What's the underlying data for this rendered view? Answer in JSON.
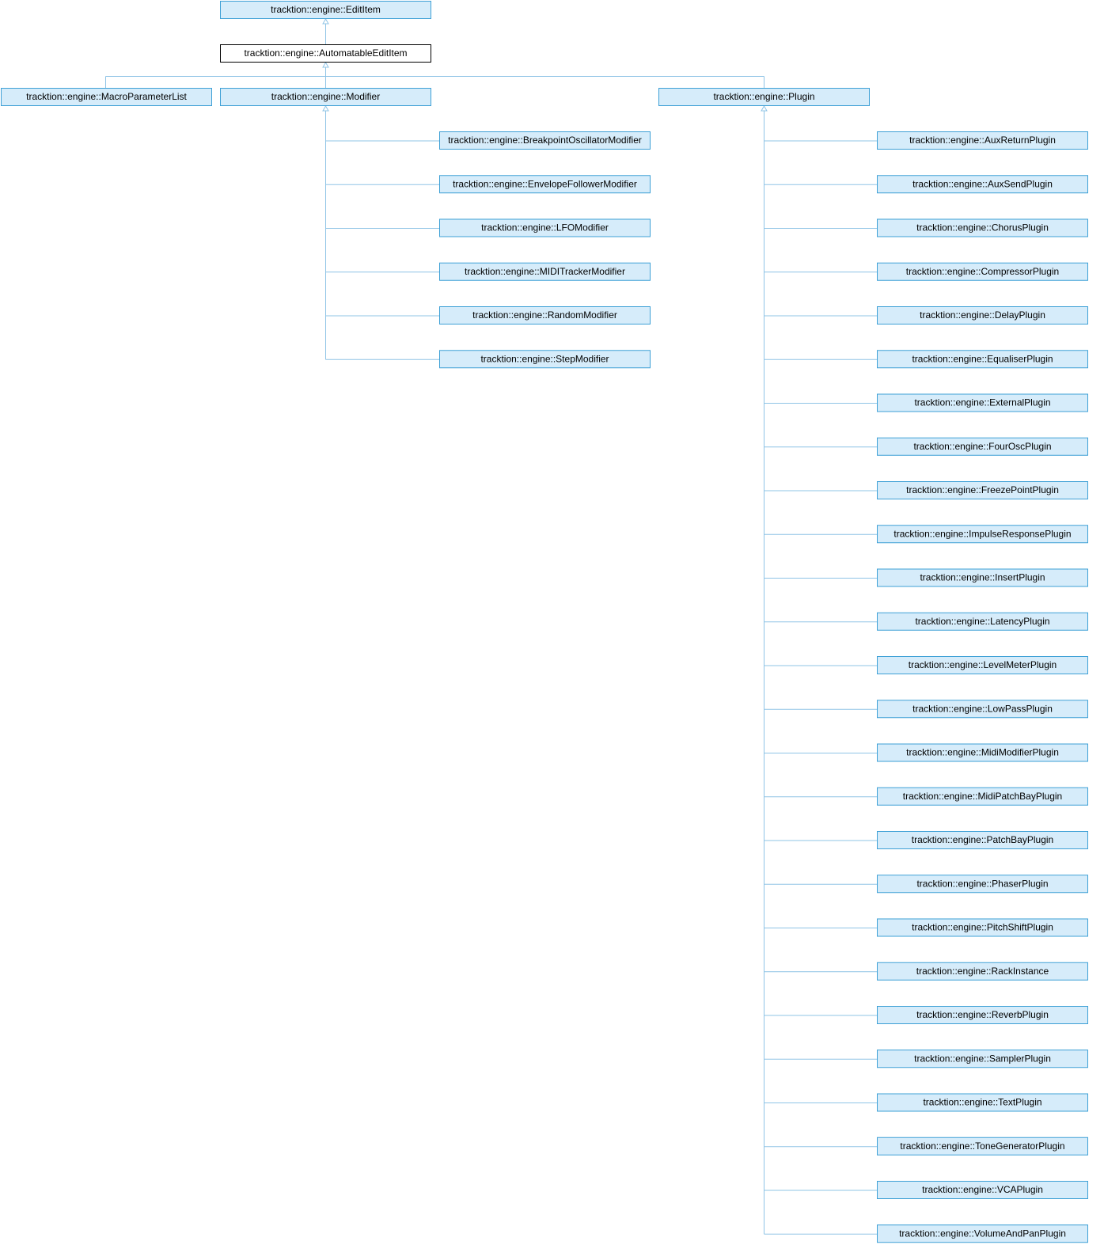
{
  "colors": {
    "node_fill": "#d6ecfa",
    "node_border": "#3ea0d6",
    "current_fill": "#ffffff",
    "current_border": "#000000",
    "edge": "#8fc4e6"
  },
  "diagram": {
    "root": "tracktion::engine::EditItem",
    "current": "tracktion::engine::AutomatableEditItem",
    "level2": [
      "tracktion::engine::MacroParameterList",
      "tracktion::engine::Modifier",
      "tracktion::engine::Plugin"
    ],
    "modifiers": [
      "tracktion::engine::BreakpointOscillatorModifier",
      "tracktion::engine::EnvelopeFollowerModifier",
      "tracktion::engine::LFOModifier",
      "tracktion::engine::MIDITrackerModifier",
      "tracktion::engine::RandomModifier",
      "tracktion::engine::StepModifier"
    ],
    "plugins": [
      "tracktion::engine::AuxReturnPlugin",
      "tracktion::engine::AuxSendPlugin",
      "tracktion::engine::ChorusPlugin",
      "tracktion::engine::CompressorPlugin",
      "tracktion::engine::DelayPlugin",
      "tracktion::engine::EqualiserPlugin",
      "tracktion::engine::ExternalPlugin",
      "tracktion::engine::FourOscPlugin",
      "tracktion::engine::FreezePointPlugin",
      "tracktion::engine::ImpulseResponsePlugin",
      "tracktion::engine::InsertPlugin",
      "tracktion::engine::LatencyPlugin",
      "tracktion::engine::LevelMeterPlugin",
      "tracktion::engine::LowPassPlugin",
      "tracktion::engine::MidiModifierPlugin",
      "tracktion::engine::MidiPatchBayPlugin",
      "tracktion::engine::PatchBayPlugin",
      "tracktion::engine::PhaserPlugin",
      "tracktion::engine::PitchShiftPlugin",
      "tracktion::engine::RackInstance",
      "tracktion::engine::ReverbPlugin",
      "tracktion::engine::SamplerPlugin",
      "tracktion::engine::TextPlugin",
      "tracktion::engine::ToneGeneratorPlugin",
      "tracktion::engine::VCAPlugin",
      "tracktion::engine::VolumeAndPanPlugin"
    ]
  }
}
